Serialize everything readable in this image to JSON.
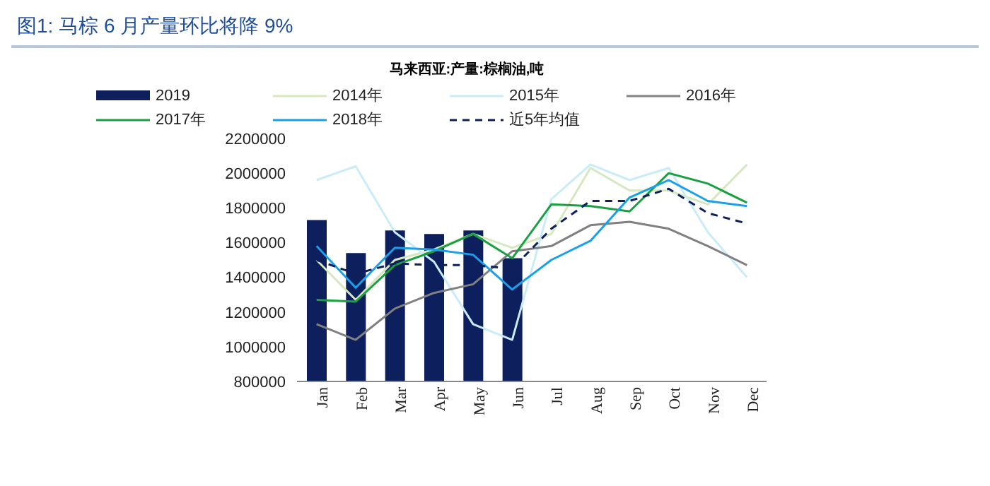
{
  "chart_data": {
    "type": "bar",
    "title": "图1: 马棕 6 月产量环比将降 9%",
    "subtitle": "马来西亚:产量:棕榈油,吨",
    "categories": [
      "Jan",
      "Feb",
      "Mar",
      "Apr",
      "May",
      "Jun",
      "Jul",
      "Aug",
      "Sep",
      "Oct",
      "Nov",
      "Dec"
    ],
    "series": [
      {
        "name": "2019",
        "color": "#0d1f5c",
        "values": [
          1730000,
          1540000,
          1670000,
          1650000,
          1670000,
          1510000,
          null,
          null,
          null,
          null,
          null,
          null
        ]
      },
      {
        "name": "2014年",
        "type": "line",
        "color": "#d5e8c0",
        "values": [
          1500000,
          1270000,
          1500000,
          1560000,
          1650000,
          1570000,
          1650000,
          2030000,
          1900000,
          1900000,
          1820000,
          2050000
        ]
      },
      {
        "name": "2015年",
        "type": "line",
        "color": "#c8ecf8",
        "values": [
          1960000,
          2040000,
          1660000,
          1490000,
          1130000,
          1040000,
          1850000,
          2050000,
          1960000,
          2030000,
          1660000,
          1400000
        ]
      },
      {
        "name": "2016年",
        "type": "line",
        "color": "#808080",
        "values": [
          1130000,
          1040000,
          1220000,
          1310000,
          1360000,
          1550000,
          1580000,
          1700000,
          1720000,
          1680000,
          1580000,
          1470000
        ]
      },
      {
        "name": "2017年",
        "type": "line",
        "color": "#1aa040",
        "values": [
          1270000,
          1260000,
          1470000,
          1550000,
          1650000,
          1510000,
          1820000,
          1810000,
          1780000,
          2000000,
          1940000,
          1830000
        ]
      },
      {
        "name": "2018年",
        "type": "line",
        "color": "#1aa0e8",
        "values": [
          1580000,
          1340000,
          1570000,
          1560000,
          1530000,
          1330000,
          1500000,
          1610000,
          1860000,
          1960000,
          1840000,
          1810000
        ]
      },
      {
        "name": "近5年均值",
        "type": "line",
        "line_style": "dashed",
        "color": "#0d1f5c",
        "values": [
          1500000,
          1420000,
          1480000,
          1470000,
          1470000,
          1450000,
          1680000,
          1840000,
          1840000,
          1910000,
          1770000,
          1710000
        ]
      }
    ],
    "ylim": [
      800000,
      2200000
    ],
    "yticks": [
      800000,
      1000000,
      1200000,
      1400000,
      1600000,
      1800000,
      2000000,
      2200000
    ],
    "grid": false,
    "legend": "top",
    "marker": "none"
  }
}
